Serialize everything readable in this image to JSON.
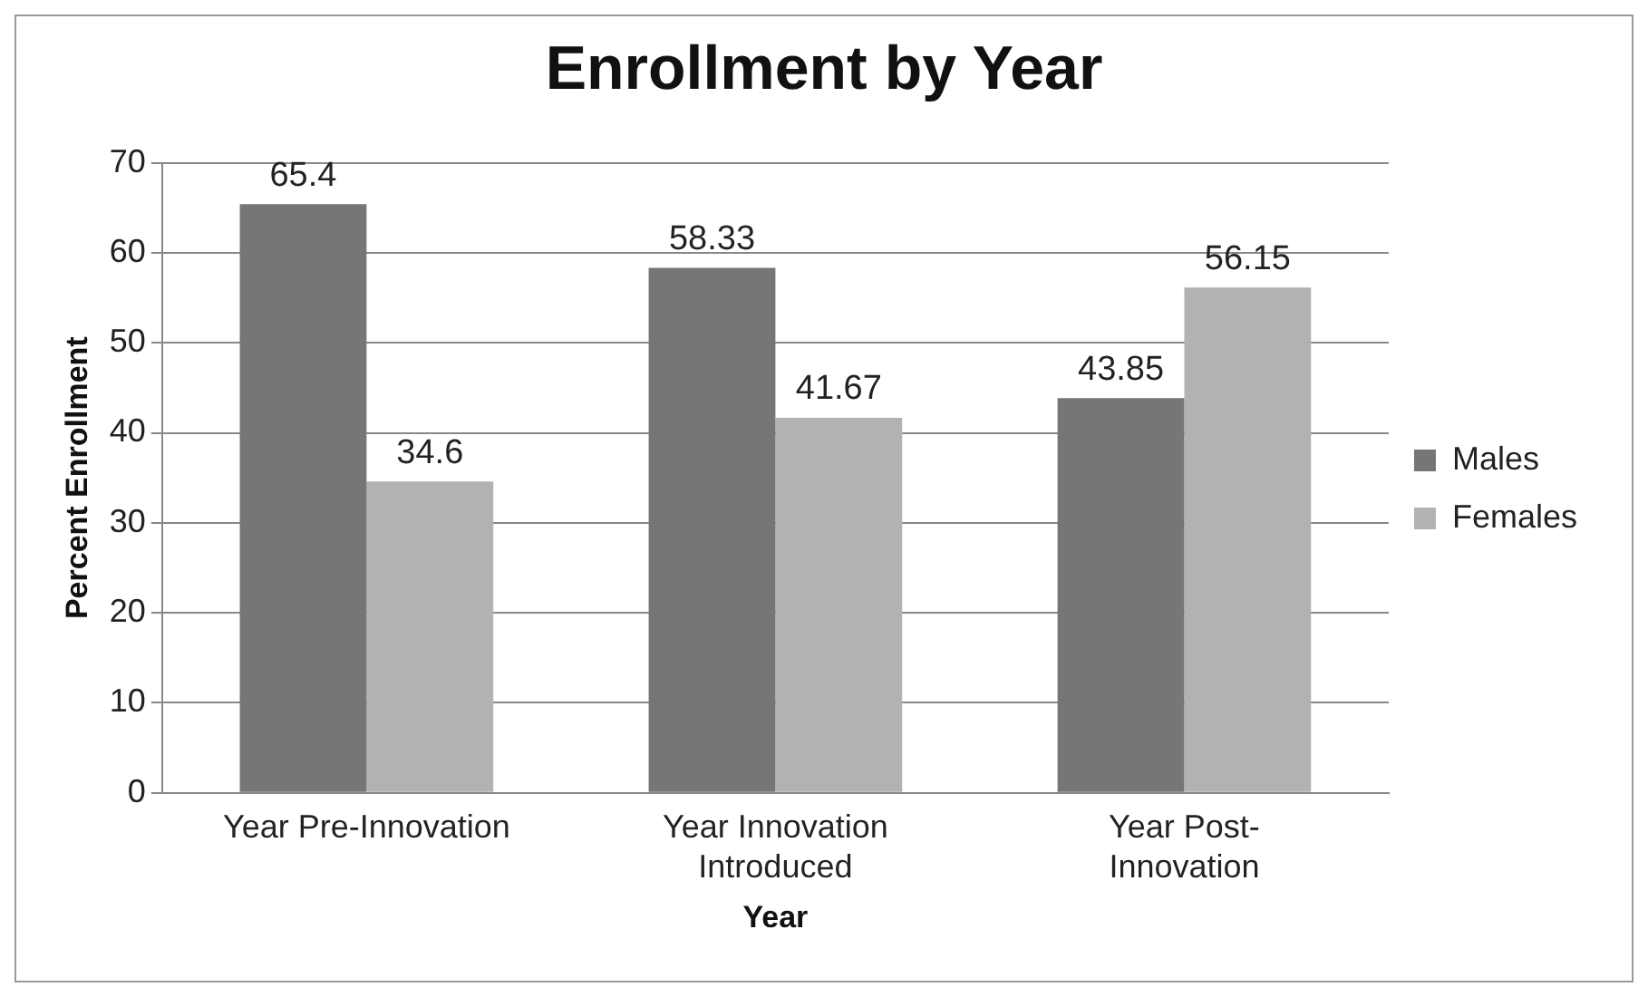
{
  "chart_data": {
    "type": "bar",
    "title": "Enrollment by Year",
    "xlabel": "Year",
    "ylabel": "Percent Enrollment",
    "categories": [
      "Year Pre-Innovation",
      "Year Innovation\nIntroduced",
      "Year Post-\nInnovation"
    ],
    "series": [
      {
        "name": "Males",
        "color": "#767679",
        "values": [
          65.4,
          58.33,
          43.85
        ]
      },
      {
        "name": "Females",
        "color": "#b2b2b4",
        "values": [
          34.6,
          41.67,
          56.15
        ]
      }
    ],
    "ylim": [
      0,
      70
    ],
    "yticks": [
      0,
      10,
      20,
      30,
      40,
      50,
      60,
      70
    ],
    "grid": "y",
    "legend": "right",
    "data_labels": true
  }
}
